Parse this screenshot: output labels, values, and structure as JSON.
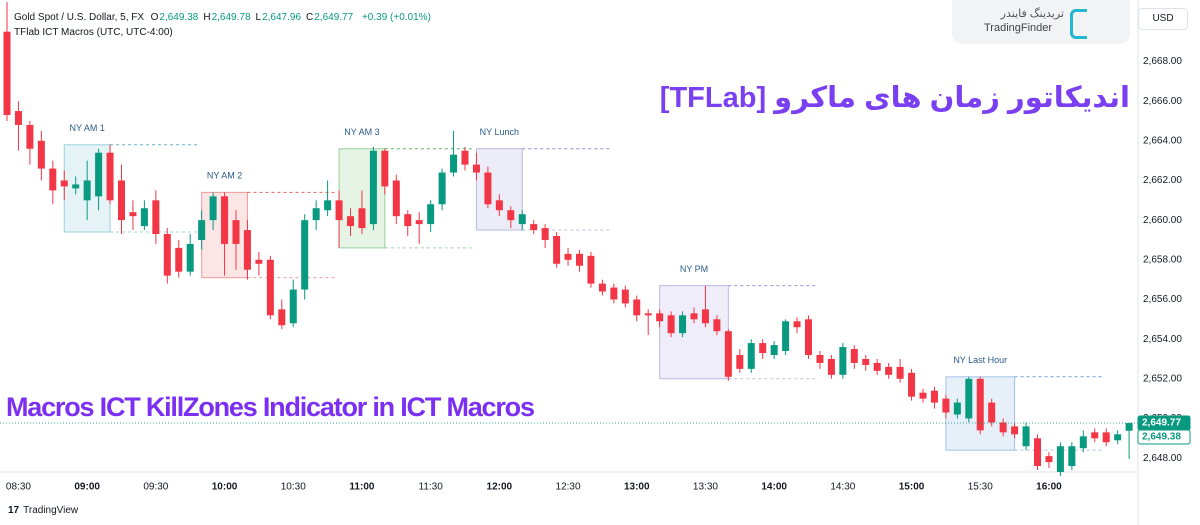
{
  "chart_data": {
    "type": "candlestick",
    "symbol": "Gold Spot / U.S. Dollar, 5, FX",
    "ohlc_header": [
      {
        "key": "O",
        "value": 2649.38,
        "label": "2,649.38"
      },
      {
        "key": "H",
        "value": 2649.78,
        "label": "2,649.78"
      },
      {
        "key": "L",
        "value": 2647.96,
        "label": "2,647.96"
      },
      {
        "key": "C",
        "value": 2649.77,
        "label": "2,649.77"
      }
    ],
    "change": "+0.39 (+0.01%)",
    "indicator": "TFlab ICT Macros (UTC, UTC-4:00)",
    "currency": "USD",
    "brand_fa": "تریدینگ فایندر",
    "brand_en": "TradingFinder",
    "overlay_title_fa": "اندیکاتور زمان های ماکرو [TFLab]",
    "overlay_title_en": "Macros ICT KillZones Indicator in ICT Macros",
    "footer": "TradingView",
    "up_color": "#089981",
    "down_color": "#f23645",
    "x": [
      "08:25",
      "08:30",
      "08:35",
      "08:40",
      "08:45",
      "08:50",
      "08:55",
      "09:00",
      "09:05",
      "09:10",
      "09:15",
      "09:20",
      "09:25",
      "09:30",
      "09:35",
      "09:40",
      "09:45",
      "09:50",
      "09:55",
      "10:00",
      "10:05",
      "10:10",
      "10:15",
      "10:20",
      "10:25",
      "10:30",
      "10:35",
      "10:40",
      "10:45",
      "10:50",
      "10:55",
      "11:00",
      "11:05",
      "11:10",
      "11:15",
      "11:20",
      "11:25",
      "11:30",
      "11:35",
      "11:40",
      "11:45",
      "11:50",
      "11:55",
      "12:00",
      "12:05",
      "12:10",
      "12:15",
      "12:20",
      "12:25",
      "12:30",
      "12:35",
      "12:40",
      "12:45",
      "12:50",
      "12:55",
      "13:00",
      "13:05",
      "13:10",
      "13:15",
      "13:20",
      "13:25",
      "13:30",
      "13:35",
      "13:40",
      "13:45",
      "13:50",
      "13:55",
      "14:00",
      "14:05",
      "14:10",
      "14:15",
      "14:20",
      "14:25",
      "14:30",
      "14:35",
      "14:40",
      "14:45",
      "14:50",
      "14:55",
      "15:00",
      "15:05",
      "15:10",
      "15:15",
      "15:20",
      "15:25",
      "15:30",
      "15:35",
      "15:40",
      "15:45",
      "15:50",
      "15:55",
      "16:00",
      "16:05",
      "16:10",
      "16:15",
      "16:20",
      "16:25",
      "16:30",
      "16:35"
    ],
    "open": [
      2669.5,
      2665.5,
      2664.8,
      2664.0,
      2662.6,
      2662.0,
      2661.6,
      2661.0,
      2661.2,
      2663.4,
      2662.0,
      2660.4,
      2659.7,
      2661.0,
      2659.3,
      2658.6,
      2657.4,
      2659.0,
      2660.0,
      2661.2,
      2660.0,
      2659.5,
      2658.0,
      2658.0,
      2655.5,
      2654.8,
      2656.5,
      2660.0,
      2660.5,
      2661.0,
      2660.2,
      2660.6,
      2659.8,
      2663.5,
      2662.0,
      2660.3,
      2660.0,
      2659.8,
      2660.8,
      2662.4,
      2663.5,
      2662.8,
      2662.4,
      2661.0,
      2660.5,
      2659.8,
      2659.8,
      2659.6,
      2659.2,
      2658.3,
      2658.3,
      2658.2,
      2656.8,
      2656.6,
      2656.5,
      2656.0,
      2655.3,
      2655.3,
      2655.2,
      2654.3,
      2655.3,
      2655.5,
      2655.0,
      2654.4,
      2653.2,
      2652.5,
      2653.8,
      2653.2,
      2653.4,
      2654.9,
      2655.0,
      2653.2,
      2653.0,
      2652.2,
      2653.5,
      2653.0,
      2652.8,
      2652.6,
      2652.6,
      2652.3,
      2651.3,
      2651.4,
      2651.0,
      2650.2,
      2650.0,
      2652.0,
      2650.8,
      2649.8,
      2649.6,
      2648.6,
      2649.0,
      2648.1,
      2647.3,
      2647.6,
      2648.5,
      2649.3,
      2649.3,
      2648.9,
      2649.38
    ],
    "high": [
      2671.0,
      2666.0,
      2665.0,
      2664.5,
      2663.0,
      2662.5,
      2662.2,
      2663.0,
      2663.6,
      2663.8,
      2662.8,
      2661.0,
      2661.0,
      2661.5,
      2659.6,
      2659.0,
      2659.3,
      2660.5,
      2661.4,
      2661.4,
      2660.5,
      2660.0,
      2658.4,
      2658.2,
      2656.0,
      2657.0,
      2660.3,
      2661.0,
      2662.0,
      2661.5,
      2660.6,
      2661.5,
      2663.7,
      2663.6,
      2662.3,
      2660.5,
      2660.4,
      2661.0,
      2662.6,
      2664.5,
      2663.7,
      2663.4,
      2662.7,
      2661.3,
      2660.7,
      2660.5,
      2660.0,
      2659.8,
      2659.4,
      2658.6,
      2658.5,
      2658.4,
      2657.0,
      2656.8,
      2656.7,
      2656.2,
      2655.5,
      2655.5,
      2655.4,
      2655.4,
      2655.6,
      2656.7,
      2655.2,
      2654.5,
      2653.5,
      2654.0,
      2654.0,
      2653.9,
      2655.0,
      2655.1,
      2655.2,
      2653.4,
      2653.2,
      2653.8,
      2653.7,
      2653.2,
      2653.0,
      2652.8,
      2653.0,
      2652.5,
      2651.5,
      2651.6,
      2651.2,
      2651.0,
      2652.1,
      2652.1,
      2651.0,
      2650.0,
      2649.8,
      2649.8,
      2649.2,
      2648.3,
      2648.8,
      2648.8,
      2649.4,
      2649.5,
      2649.5,
      2649.4,
      2649.78
    ],
    "low": [
      2665.0,
      2663.5,
      2662.8,
      2662.0,
      2660.8,
      2661.0,
      2661.3,
      2660.0,
      2660.5,
      2660.8,
      2659.3,
      2659.5,
      2659.5,
      2658.8,
      2656.8,
      2657.1,
      2657.2,
      2658.5,
      2659.5,
      2657.2,
      2657.5,
      2657.0,
      2657.2,
      2655.0,
      2654.5,
      2654.6,
      2656.0,
      2659.5,
      2660.2,
      2658.6,
      2659.2,
      2659.3,
      2659.5,
      2661.3,
      2659.8,
      2659.2,
      2658.8,
      2659.4,
      2660.5,
      2662.2,
      2662.5,
      2662.0,
      2660.6,
      2660.2,
      2659.6,
      2659.5,
      2659.3,
      2658.6,
      2657.6,
      2657.7,
      2657.4,
      2656.6,
      2656.2,
      2655.8,
      2655.6,
      2654.9,
      2654.2,
      2654.6,
      2654.1,
      2654.1,
      2654.8,
      2654.6,
      2654.2,
      2651.9,
      2652.3,
      2652.3,
      2653.0,
      2653.0,
      2653.2,
      2654.3,
      2653.0,
      2652.5,
      2652.0,
      2652.0,
      2652.5,
      2652.4,
      2652.2,
      2652.0,
      2651.8,
      2650.9,
      2650.8,
      2650.5,
      2650.0,
      2650.0,
      2649.8,
      2649.2,
      2649.6,
      2649.1,
      2649.0,
      2648.4,
      2647.4,
      2647.5,
      2647.1,
      2647.4,
      2648.3,
      2648.8,
      2648.6,
      2648.7,
      2647.96
    ],
    "close": [
      2665.3,
      2664.8,
      2663.6,
      2662.6,
      2661.5,
      2661.7,
      2661.8,
      2662.0,
      2663.4,
      2661.0,
      2660.0,
      2660.2,
      2660.6,
      2659.3,
      2657.2,
      2657.4,
      2658.8,
      2660.0,
      2661.2,
      2658.8,
      2658.8,
      2657.5,
      2657.8,
      2655.2,
      2654.7,
      2656.5,
      2660.0,
      2660.6,
      2661.0,
      2660.0,
      2659.7,
      2659.6,
      2663.5,
      2661.7,
      2660.2,
      2659.7,
      2659.8,
      2660.8,
      2662.4,
      2663.3,
      2662.8,
      2662.4,
      2660.8,
      2660.5,
      2660.0,
      2660.3,
      2659.5,
      2659.0,
      2657.8,
      2658.0,
      2657.7,
      2656.8,
      2656.4,
      2656.0,
      2655.8,
      2655.2,
      2655.2,
      2654.9,
      2654.3,
      2655.2,
      2655.0,
      2654.8,
      2654.4,
      2652.1,
      2652.5,
      2653.8,
      2653.3,
      2653.7,
      2654.9,
      2654.6,
      2653.2,
      2652.8,
      2652.2,
      2653.6,
      2652.8,
      2652.7,
      2652.4,
      2652.2,
      2652.0,
      2651.1,
      2651.0,
      2650.8,
      2650.3,
      2650.8,
      2652.0,
      2649.4,
      2649.8,
      2649.3,
      2649.2,
      2649.6,
      2647.6,
      2647.8,
      2648.6,
      2648.6,
      2649.1,
      2649.0,
      2648.8,
      2649.2,
      2649.77
    ],
    "xticks": [
      "08:30",
      "09:00",
      "09:30",
      "10:00",
      "10:30",
      "11:00",
      "11:30",
      "12:00",
      "12:30",
      "13:00",
      "13:30",
      "14:00",
      "14:30",
      "15:00",
      "15:30",
      "16:00"
    ],
    "ylim": [
      2647.3,
      2671.1
    ],
    "yticks": [
      {
        "value": 2648,
        "label": "2,648.00"
      },
      {
        "value": 2650,
        "label": "2,650.00"
      },
      {
        "value": 2652,
        "label": "2,652.00"
      },
      {
        "value": 2654,
        "label": "2,654.00"
      },
      {
        "value": 2656,
        "label": "2,656.00"
      },
      {
        "value": 2658,
        "label": "2,658.00"
      },
      {
        "value": 2660,
        "label": "2,660.00"
      },
      {
        "value": 2662,
        "label": "2,662.00"
      },
      {
        "value": 2664,
        "label": "2,664.00"
      },
      {
        "value": 2666,
        "label": "2,666.00"
      },
      {
        "value": 2668,
        "label": "2,668.00"
      }
    ],
    "grid": false,
    "zones": [
      {
        "name": "NY AM 1",
        "start": "08:50",
        "end": "09:10",
        "high": 2663.8,
        "low": 2659.4,
        "color": "#5fb6c9"
      },
      {
        "name": "NY AM 2",
        "start": "09:50",
        "end": "10:10",
        "high": 2661.4,
        "low": 2657.1,
        "color": "#e8605f"
      },
      {
        "name": "NY AM 3",
        "start": "10:50",
        "end": "11:10",
        "high": 2663.6,
        "low": 2658.6,
        "color": "#5cb85c"
      },
      {
        "name": "NY Lunch",
        "start": "11:50",
        "end": "12:10",
        "high": 2663.6,
        "low": 2659.5,
        "color": "#8f8fd0"
      },
      {
        "name": "NY PM",
        "start": "13:10",
        "end": "13:40",
        "high": 2656.7,
        "low": 2652.0,
        "color": "#9a8fd8"
      },
      {
        "name": "NY Last Hour",
        "start": "15:15",
        "end": "15:45",
        "high": 2652.1,
        "low": 2648.4,
        "color": "#6a9fd8"
      }
    ],
    "price_labels": [
      {
        "value": 2649.77,
        "label": "2,649.77",
        "color": "#089981"
      },
      {
        "value": 2649.38,
        "label": "2,649.38",
        "color": "#ffffff"
      }
    ]
  }
}
